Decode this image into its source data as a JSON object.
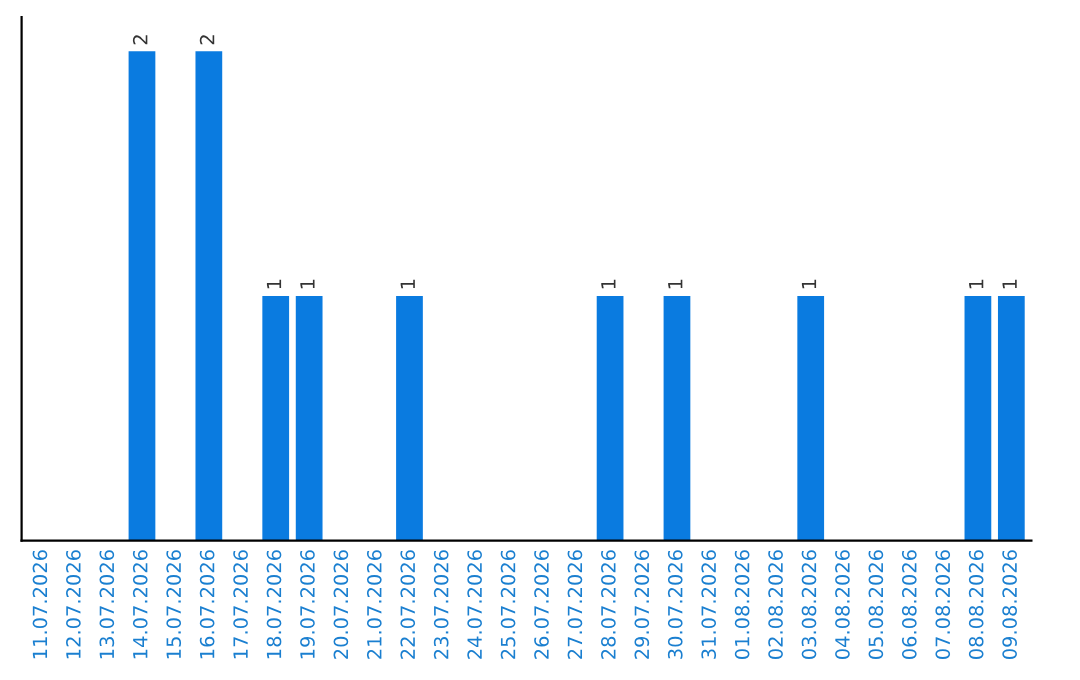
{
  "chart_data": {
    "type": "bar",
    "categories": [
      "11.07.2026",
      "12.07.2026",
      "13.07.2026",
      "14.07.2026",
      "15.07.2026",
      "16.07.2026",
      "17.07.2026",
      "18.07.2026",
      "19.07.2026",
      "20.07.2026",
      "21.07.2026",
      "22.07.2026",
      "23.07.2026",
      "24.07.2026",
      "25.07.2026",
      "26.07.2026",
      "27.07.2026",
      "28.07.2026",
      "29.07.2026",
      "30.07.2026",
      "31.07.2026",
      "01.08.2026",
      "02.08.2026",
      "03.08.2026",
      "04.08.2026",
      "05.08.2026",
      "06.08.2026",
      "07.08.2026",
      "08.08.2026",
      "09.08.2026"
    ],
    "values": [
      0,
      0,
      0,
      2,
      0,
      2,
      0,
      1,
      1,
      0,
      0,
      1,
      0,
      0,
      0,
      0,
      0,
      1,
      0,
      1,
      0,
      0,
      0,
      1,
      0,
      0,
      0,
      0,
      1,
      1
    ],
    "value_labels": [
      null,
      null,
      null,
      "2",
      null,
      "2",
      null,
      "1",
      "1",
      null,
      null,
      "1",
      null,
      null,
      null,
      null,
      null,
      "1",
      null,
      "1",
      null,
      null,
      null,
      "1",
      null,
      null,
      null,
      null,
      "1",
      "1"
    ],
    "color": "#0a7be0",
    "relative": false,
    "tick_labels": "x",
    "grid": false,
    "legend": false
  }
}
